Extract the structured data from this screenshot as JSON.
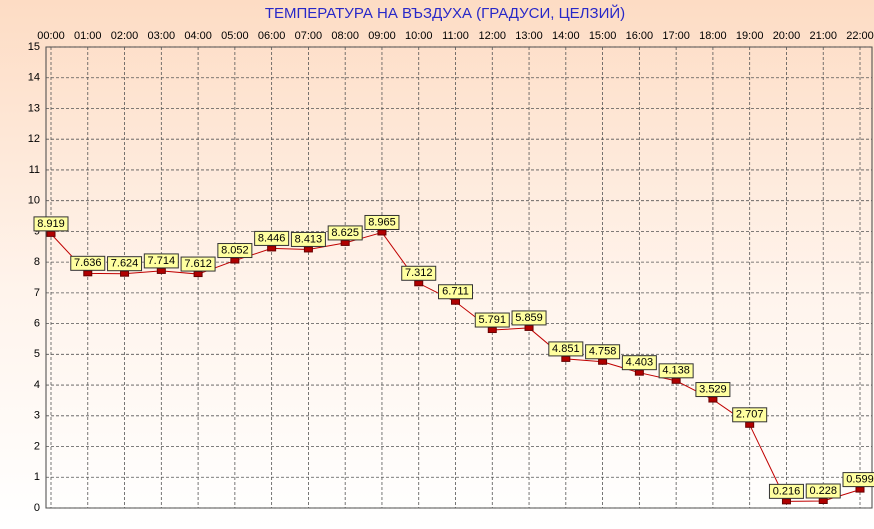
{
  "chart_data": {
    "type": "line",
    "title": "ТЕМПЕРАТУРА НА ВЪЗДУХА  (ГРАДУСИ, ЦЕЛЗИЙ)",
    "categories": [
      "00:00",
      "01:00",
      "02:00",
      "03:00",
      "04:00",
      "05:00",
      "06:00",
      "07:00",
      "08:00",
      "09:00",
      "10:00",
      "11:00",
      "12:00",
      "13:00",
      "14:00",
      "15:00",
      "16:00",
      "17:00",
      "18:00",
      "19:00",
      "20:00",
      "21:00",
      "22:00"
    ],
    "values": [
      8.919,
      7.636,
      7.624,
      7.714,
      7.612,
      8.052,
      8.446,
      8.413,
      8.625,
      8.965,
      7.312,
      6.711,
      5.791,
      5.859,
      4.851,
      4.758,
      4.403,
      4.138,
      3.529,
      2.707,
      0.216,
      0.228,
      0.599
    ],
    "color": "#c00000",
    "ylim": [
      0,
      15
    ],
    "yticks": [
      0,
      1,
      2,
      3,
      4,
      5,
      6,
      7,
      8,
      9,
      10,
      11,
      12,
      13,
      14,
      15
    ],
    "grid": true
  }
}
